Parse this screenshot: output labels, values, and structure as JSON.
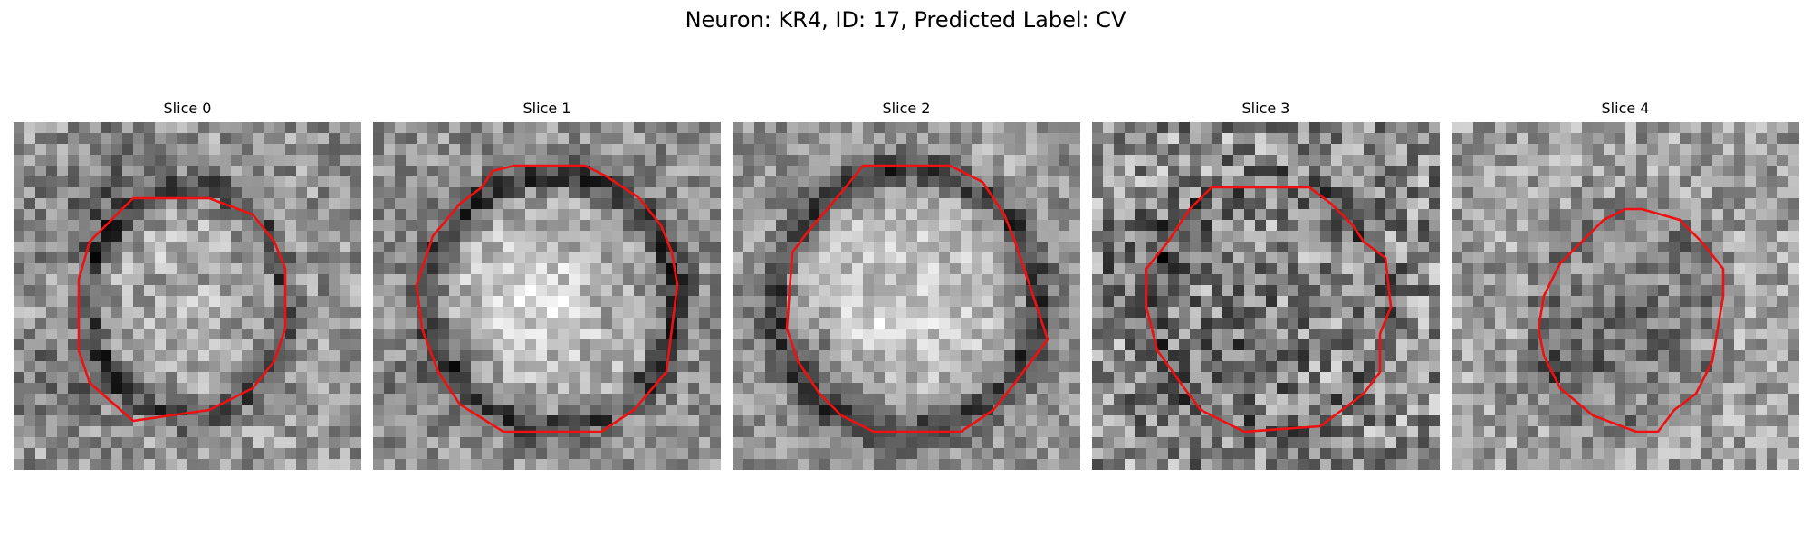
{
  "figure": {
    "title": "Neuron: KR4, ID: 17, Predicted Label: CV"
  },
  "slices": [
    {
      "label": "Slice 0"
    },
    {
      "label": "Slice 1"
    },
    {
      "label": "Slice 2"
    },
    {
      "label": "Slice 3"
    },
    {
      "label": "Slice 4"
    }
  ],
  "colors": {
    "contour": "#ee1111"
  }
}
